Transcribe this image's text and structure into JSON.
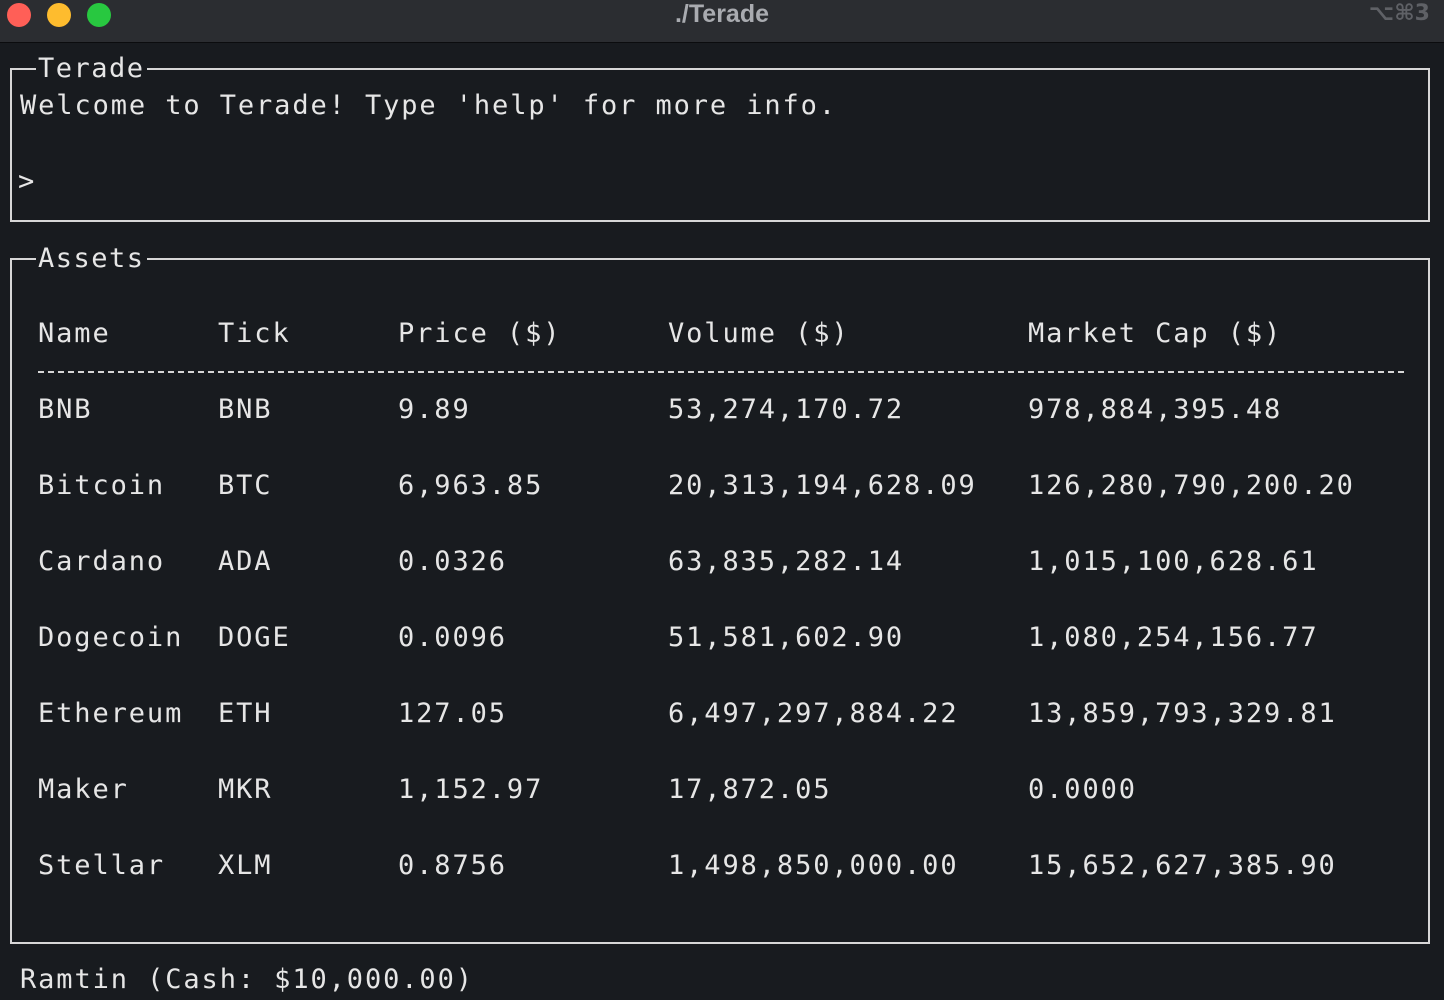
{
  "window": {
    "title": "./Terade",
    "shortcut": "⌥⌘3"
  },
  "console": {
    "label": "Terade",
    "welcome": "Welcome to Terade! Type 'help' for more info.",
    "prompt": ">"
  },
  "assets": {
    "label": "Assets",
    "columns": [
      "Name",
      "Tick",
      "Price ($)",
      "Volume ($)",
      "Market Cap ($)"
    ],
    "rows": [
      [
        "BNB",
        "BNB",
        "9.89",
        "53,274,170.72",
        "978,884,395.48"
      ],
      [
        "Bitcoin",
        "BTC",
        "6,963.85",
        "20,313,194,628.09",
        "126,280,790,200.20"
      ],
      [
        "Cardano",
        "ADA",
        "0.0326",
        "63,835,282.14",
        "1,015,100,628.61"
      ],
      [
        "Dogecoin",
        "DOGE",
        "0.0096",
        "51,581,602.90",
        "1,080,254,156.77"
      ],
      [
        "Ethereum",
        "ETH",
        "127.05",
        "6,497,297,884.22",
        "13,859,793,329.81"
      ],
      [
        "Maker",
        "MKR",
        "1,152.97",
        "17,872.05",
        "0.0000"
      ],
      [
        "Stellar",
        "XLM",
        "0.8756",
        "1,498,850,000.00",
        "15,652,627,385.90"
      ]
    ]
  },
  "status": {
    "text": "Ramtin (Cash: $10,000.00)"
  }
}
